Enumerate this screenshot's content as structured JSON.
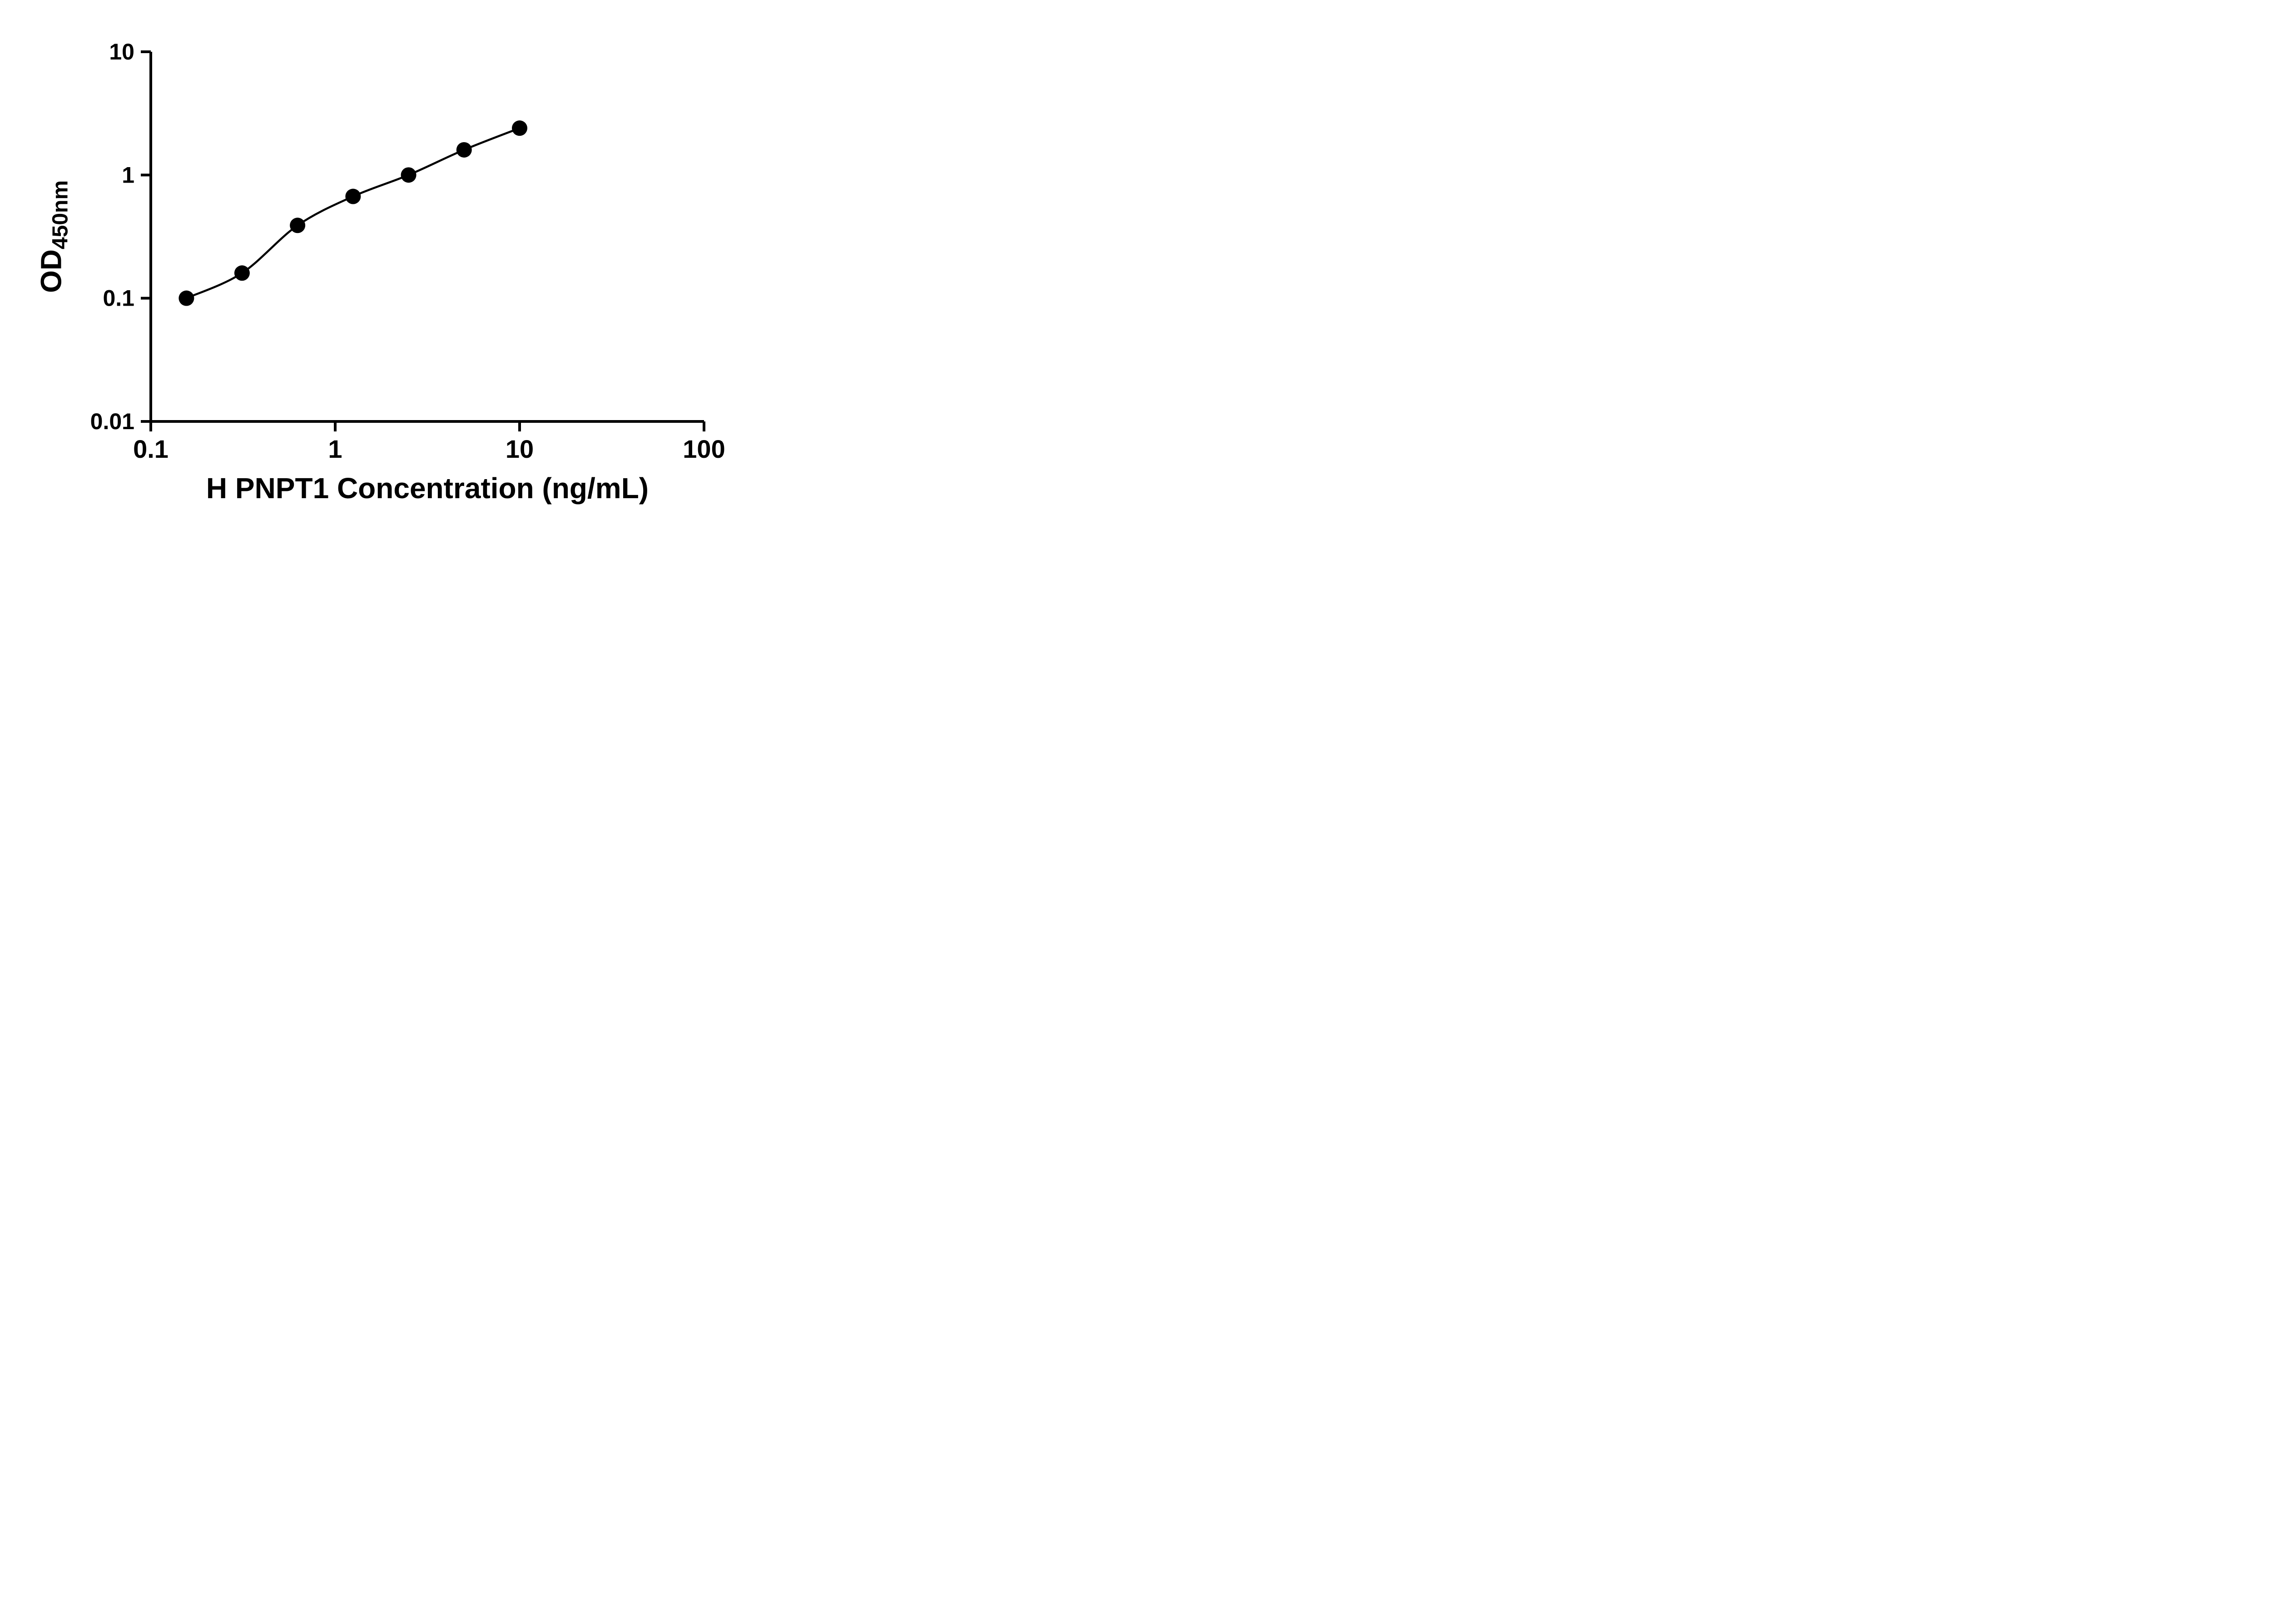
{
  "figure": {
    "background": "#ffffff",
    "y_axis_title_main": "OD",
    "y_axis_title_sub": "450nm"
  },
  "chart_data": {
    "type": "scatter",
    "title": "",
    "xlabel": "H PNPT1 Concentration (ng/mL)",
    "ylabel": "OD450nm",
    "x_scale": "log",
    "y_scale": "log",
    "xlim": [
      0.1,
      100
    ],
    "ylim": [
      0.01,
      10
    ],
    "grid": false,
    "legend": "none",
    "marker": "filled-circle",
    "marker_color": "#000000",
    "line_color": "#000000",
    "axis_color": "#000000",
    "fit_curve": true,
    "x_ticks": [
      {
        "v": 0.1,
        "label": "0.1"
      },
      {
        "v": 1,
        "label": "1"
      },
      {
        "v": 10,
        "label": "10"
      },
      {
        "v": 100,
        "label": "100"
      }
    ],
    "y_ticks": [
      {
        "v": 0.01,
        "label": "0.01"
      },
      {
        "v": 0.1,
        "label": "0.1"
      },
      {
        "v": 1,
        "label": "1"
      },
      {
        "v": 10,
        "label": "10"
      }
    ],
    "series": [
      {
        "x": [
          0.156,
          0.3125,
          0.625,
          1.25,
          2.5,
          5,
          10
        ],
        "y": [
          0.1,
          0.16,
          0.39,
          0.67,
          1.0,
          1.6,
          2.4
        ]
      }
    ]
  }
}
